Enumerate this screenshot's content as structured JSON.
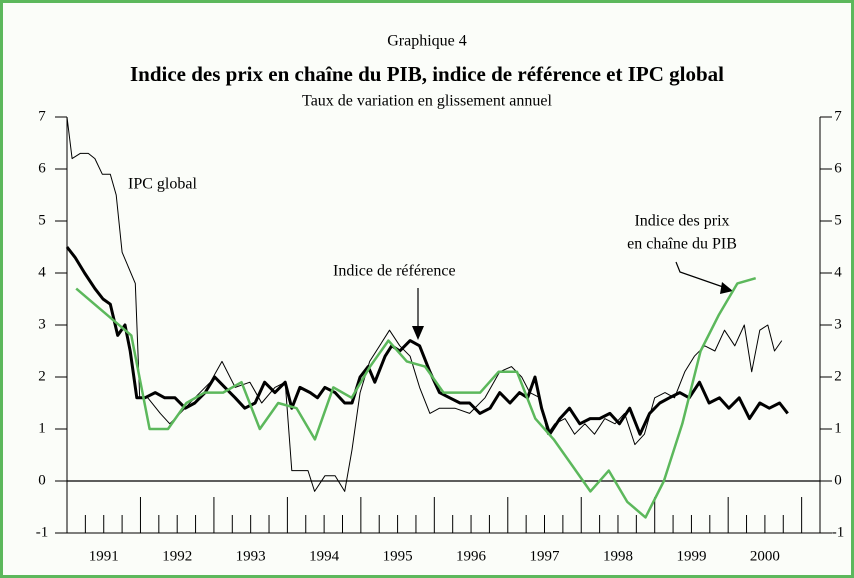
{
  "chart_data": {
    "type": "line",
    "label": "Graphique 4",
    "title": "Indice des prix en chaîne du PIB, indice de référence et IPC global",
    "subtitle": "Taux de variation en glissement annuel",
    "xlim": [
      1991,
      2001.25
    ],
    "ylim": [
      -1,
      7
    ],
    "yticks": [
      -1,
      0,
      1,
      2,
      3,
      4,
      5,
      6,
      7
    ],
    "xticks": [
      {
        "value": 1991.5,
        "label": "1991"
      },
      {
        "value": 1992.5,
        "label": "1992"
      },
      {
        "value": 1993.5,
        "label": "1993"
      },
      {
        "value": 1994.5,
        "label": "1994"
      },
      {
        "value": 1995.5,
        "label": "1995"
      },
      {
        "value": 1996.5,
        "label": "1996"
      },
      {
        "value": 1997.5,
        "label": "1997"
      },
      {
        "value": 1998.5,
        "label": "1998"
      },
      {
        "value": 1999.5,
        "label": "1999"
      },
      {
        "value": 2000.5,
        "label": "2000"
      }
    ],
    "xticks_major": [
      1991,
      1992,
      1993,
      1994,
      1995,
      1996,
      1997,
      1998,
      1999,
      2000,
      2001
    ],
    "xticks_minor": [
      1991.25,
      1991.5,
      1991.75,
      1992.25,
      1992.5,
      1992.75,
      1993.25,
      1993.5,
      1993.75,
      1994.25,
      1994.5,
      1994.75,
      1995.25,
      1995.5,
      1995.75,
      1996.25,
      1996.5,
      1996.75,
      1997.25,
      1997.5,
      1997.75,
      1998.25,
      1998.5,
      1998.75,
      1999.25,
      1999.5,
      1999.75,
      2000.25,
      2000.5,
      2000.75
    ],
    "zero_line": true,
    "series": [
      {
        "name": "IPC global",
        "color": "#000000",
        "linewidth": 1,
        "x": [
          1991.0,
          1991.07,
          1991.18,
          1991.29,
          1991.38,
          1991.48,
          1991.59,
          1991.67,
          1991.75,
          1991.93,
          1991.99,
          1992.1,
          1992.27,
          1992.4,
          1992.54,
          1992.74,
          1992.95,
          1993.11,
          1993.29,
          1993.49,
          1993.65,
          1993.83,
          1993.97,
          1994.06,
          1994.17,
          1994.28,
          1994.37,
          1994.51,
          1994.65,
          1994.78,
          1994.88,
          1994.99,
          1995.12,
          1995.39,
          1995.53,
          1995.67,
          1995.8,
          1995.94,
          1996.07,
          1996.28,
          1996.48,
          1996.69,
          1996.89,
          1997.05,
          1997.19,
          1997.3,
          1997.44,
          1997.54,
          1997.64,
          1997.78,
          1997.91,
          1998.05,
          1998.18,
          1998.32,
          1998.46,
          1998.59,
          1998.73,
          1998.86,
          1999.0,
          1999.14,
          1999.27,
          1999.41,
          1999.54,
          1999.68,
          1999.82,
          1999.95,
          2000.09,
          2000.22,
          2000.32,
          2000.43,
          2000.54,
          2000.63,
          2000.73
        ],
        "values": [
          7.0,
          6.2,
          6.3,
          6.3,
          6.2,
          5.9,
          5.9,
          5.5,
          4.4,
          3.8,
          1.6,
          1.6,
          1.3,
          1.1,
          1.3,
          1.6,
          1.9,
          2.3,
          1.8,
          1.9,
          1.5,
          1.8,
          1.9,
          0.2,
          0.2,
          0.2,
          -0.2,
          0.1,
          0.1,
          -0.2,
          0.6,
          1.7,
          2.3,
          2.9,
          2.6,
          2.4,
          1.8,
          1.3,
          1.4,
          1.4,
          1.3,
          1.6,
          2.1,
          2.2,
          2.0,
          1.7,
          1.6,
          0.9,
          1.1,
          1.2,
          0.9,
          1.1,
          0.9,
          1.2,
          1.1,
          1.3,
          0.7,
          0.9,
          1.6,
          1.7,
          1.6,
          2.1,
          2.4,
          2.6,
          2.5,
          2.9,
          2.6,
          3.0,
          2.1,
          2.9,
          3.0,
          2.5,
          2.7
        ]
      },
      {
        "name": "Indice de référence",
        "color": "#000000",
        "linewidth": 3,
        "x": [
          1991.0,
          1991.11,
          1991.24,
          1991.38,
          1991.49,
          1991.59,
          1991.69,
          1991.79,
          1991.86,
          1991.95,
          1992.06,
          1992.2,
          1992.33,
          1992.47,
          1992.61,
          1992.74,
          1992.88,
          1993.01,
          1993.15,
          1993.29,
          1993.42,
          1993.56,
          1993.69,
          1993.83,
          1993.97,
          1994.06,
          1994.17,
          1994.31,
          1994.41,
          1994.51,
          1994.65,
          1994.78,
          1994.88,
          1994.99,
          1995.1,
          1995.19,
          1995.33,
          1995.42,
          1995.53,
          1995.67,
          1995.8,
          1995.94,
          1996.07,
          1996.21,
          1996.35,
          1996.48,
          1996.62,
          1996.76,
          1996.89,
          1997.03,
          1997.16,
          1997.27,
          1997.37,
          1997.46,
          1997.57,
          1997.71,
          1997.84,
          1997.98,
          1998.12,
          1998.25,
          1998.39,
          1998.52,
          1998.66,
          1998.8,
          1998.93,
          1999.07,
          1999.2,
          1999.34,
          1999.47,
          1999.61,
          1999.74,
          1999.88,
          2000.01,
          2000.15,
          2000.29,
          2000.43,
          2000.56,
          2000.7,
          2000.81
        ],
        "values": [
          4.5,
          4.3,
          4.0,
          3.7,
          3.5,
          3.4,
          2.8,
          3.0,
          2.5,
          1.6,
          1.6,
          1.7,
          1.6,
          1.6,
          1.4,
          1.5,
          1.7,
          2.0,
          1.8,
          1.6,
          1.4,
          1.5,
          1.9,
          1.7,
          1.9,
          1.4,
          1.8,
          1.7,
          1.6,
          1.8,
          1.7,
          1.5,
          1.5,
          2.0,
          2.2,
          1.9,
          2.4,
          2.6,
          2.5,
          2.7,
          2.6,
          2.1,
          1.7,
          1.6,
          1.5,
          1.5,
          1.3,
          1.4,
          1.7,
          1.5,
          1.7,
          1.6,
          2.0,
          1.4,
          0.9,
          1.2,
          1.4,
          1.1,
          1.2,
          1.2,
          1.3,
          1.1,
          1.4,
          0.9,
          1.3,
          1.5,
          1.6,
          1.7,
          1.6,
          1.9,
          1.5,
          1.6,
          1.4,
          1.6,
          1.2,
          1.5,
          1.4,
          1.5,
          1.3
        ]
      },
      {
        "name": "Indice des prix en chaîne du PIB",
        "color": "#5cb85c",
        "linewidth": 2.5,
        "x": [
          1991.125,
          1991.375,
          1991.625,
          1991.875,
          1992.125,
          1992.375,
          1992.625,
          1992.875,
          1993.125,
          1993.375,
          1993.625,
          1993.875,
          1994.125,
          1994.375,
          1994.625,
          1994.875,
          1995.125,
          1995.375,
          1995.625,
          1995.875,
          1996.125,
          1996.375,
          1996.625,
          1996.875,
          1997.125,
          1997.375,
          1997.625,
          1997.875,
          1998.125,
          1998.375,
          1998.625,
          1998.875,
          1999.125,
          1999.375,
          1999.625,
          1999.875,
          2000.125,
          2000.375
        ],
        "values": [
          3.7,
          3.4,
          3.1,
          2.8,
          1.0,
          1.0,
          1.5,
          1.7,
          1.7,
          1.9,
          1.0,
          1.5,
          1.4,
          0.8,
          1.8,
          1.6,
          2.2,
          2.7,
          2.3,
          2.2,
          1.7,
          1.7,
          1.7,
          2.1,
          2.1,
          1.2,
          0.8,
          0.3,
          -0.2,
          0.2,
          -0.4,
          -0.7,
          0.0,
          1.1,
          2.5,
          3.2,
          3.8,
          3.9
        ]
      }
    ],
    "annotations": [
      "IPC global",
      "Indice de référence",
      "Indice des prix",
      "en chaîne du PIB"
    ]
  }
}
